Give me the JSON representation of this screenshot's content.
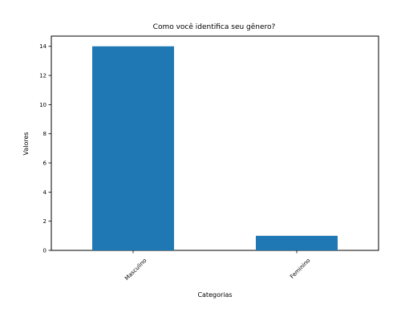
{
  "chart_data": {
    "type": "bar",
    "title": "Como você identifica seu gênero?",
    "xlabel": "Categorias",
    "ylabel": "Valores",
    "categories": [
      "Masculino",
      "Feminino"
    ],
    "values": [
      14,
      1
    ],
    "ylim": [
      0,
      14.7
    ],
    "yticks": [
      0,
      2,
      4,
      6,
      8,
      10,
      12,
      14
    ],
    "bar_color": "#1f77b4",
    "grid": false,
    "legend": false
  }
}
